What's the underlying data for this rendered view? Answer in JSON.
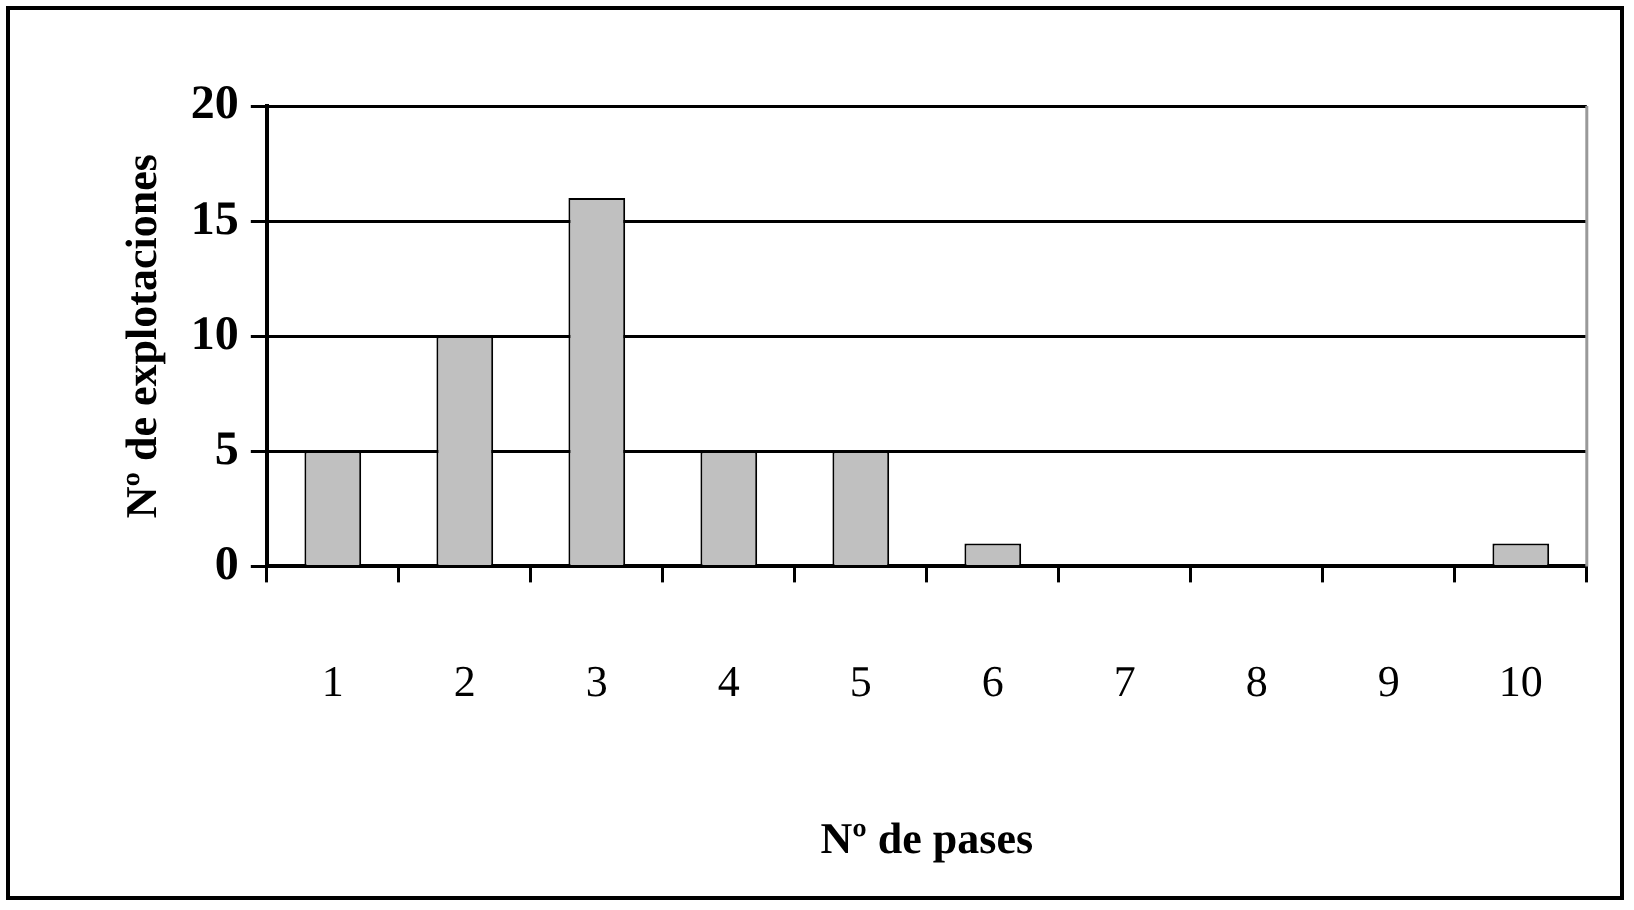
{
  "chart_data": {
    "type": "bar",
    "xlabel": "Nº de pases",
    "ylabel": "Nº de explotaciones",
    "categories": [
      "1",
      "2",
      "3",
      "4",
      "5",
      "6",
      "7",
      "8",
      "9",
      "10"
    ],
    "values": [
      5,
      10,
      16,
      5,
      5,
      1,
      0,
      0,
      0,
      1
    ],
    "color": "#c0c0c0",
    "ylim": [
      0,
      20
    ],
    "yticks": [
      0,
      5,
      10,
      15,
      20
    ],
    "grid": "y",
    "legend": false
  }
}
